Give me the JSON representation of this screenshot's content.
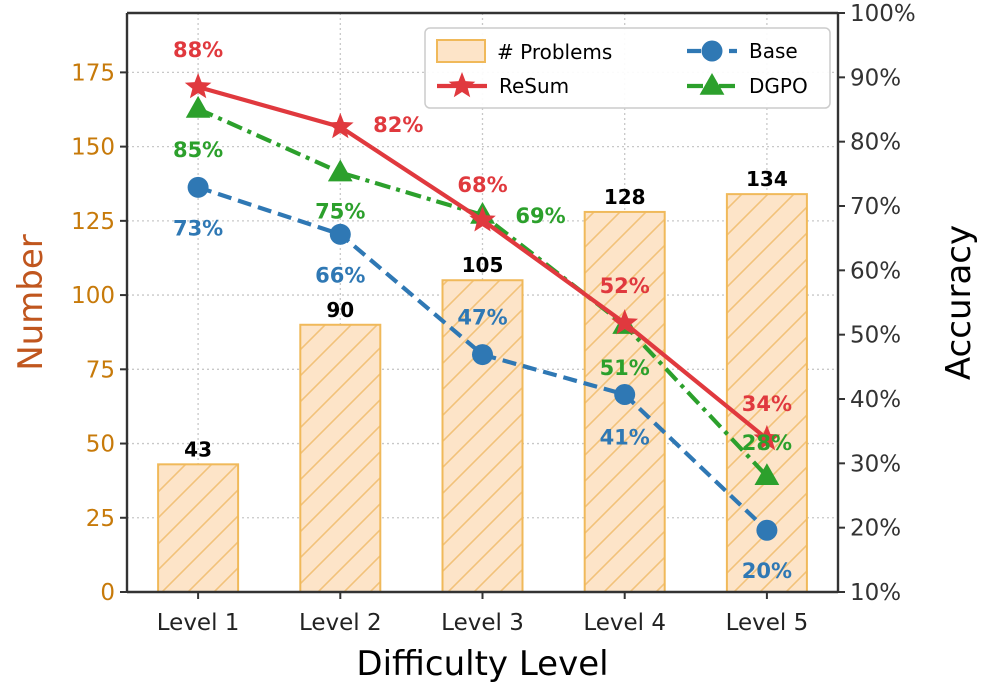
{
  "chart_data": {
    "type": "bar",
    "categories": [
      "Level 1",
      "Level 2",
      "Level 3",
      "Level 4",
      "Level 5"
    ],
    "xlabel": "Difficulty Level",
    "ylabel_left": "Number",
    "ylabel_right": "Accuracy",
    "ylim_left": [
      0,
      195
    ],
    "ylim_right": [
      10,
      100
    ],
    "yticks_left": [
      0,
      25,
      50,
      75,
      100,
      125,
      150,
      175
    ],
    "yticks_right": [
      "10%",
      "20%",
      "30%",
      "40%",
      "50%",
      "60%",
      "70%",
      "80%",
      "90%",
      "100%"
    ],
    "grid": true,
    "legend_position": "top-right",
    "bars": {
      "name": "# Problems",
      "axis": "left",
      "values": [
        43,
        90,
        105,
        128,
        134
      ],
      "labels": [
        "43",
        "90",
        "105",
        "128",
        "134"
      ],
      "color": "#fde4c8",
      "edge_color": "#f0b95a"
    },
    "series": [
      {
        "name": "ReSum",
        "axis": "right",
        "marker": "star",
        "line_style": "solid",
        "color": "#e0393e",
        "values": [
          88.5,
          82.3,
          67.8,
          51.8,
          33.8
        ],
        "labels": [
          "88%",
          "82%",
          "68%",
          "52%",
          "34%"
        ]
      },
      {
        "name": "Base",
        "axis": "right",
        "marker": "circle",
        "line_style": "dashed",
        "color": "#2f78b4",
        "values": [
          72.9,
          65.6,
          46.9,
          40.7,
          19.6
        ],
        "labels": [
          "73%",
          "66%",
          "47%",
          "41%",
          "20%"
        ]
      },
      {
        "name": "DGPO",
        "axis": "right",
        "marker": "triangle",
        "line_style": "dashdot",
        "color": "#2ca02c",
        "values": [
          85.1,
          75.2,
          68.6,
          51.5,
          28.0
        ],
        "labels": [
          "85%",
          "75%",
          "69%",
          "51%",
          "28%"
        ]
      }
    ],
    "colors": {
      "left_axis": "#c77a0a",
      "left_title": "#c0561e",
      "right_axis": "#333333"
    }
  }
}
